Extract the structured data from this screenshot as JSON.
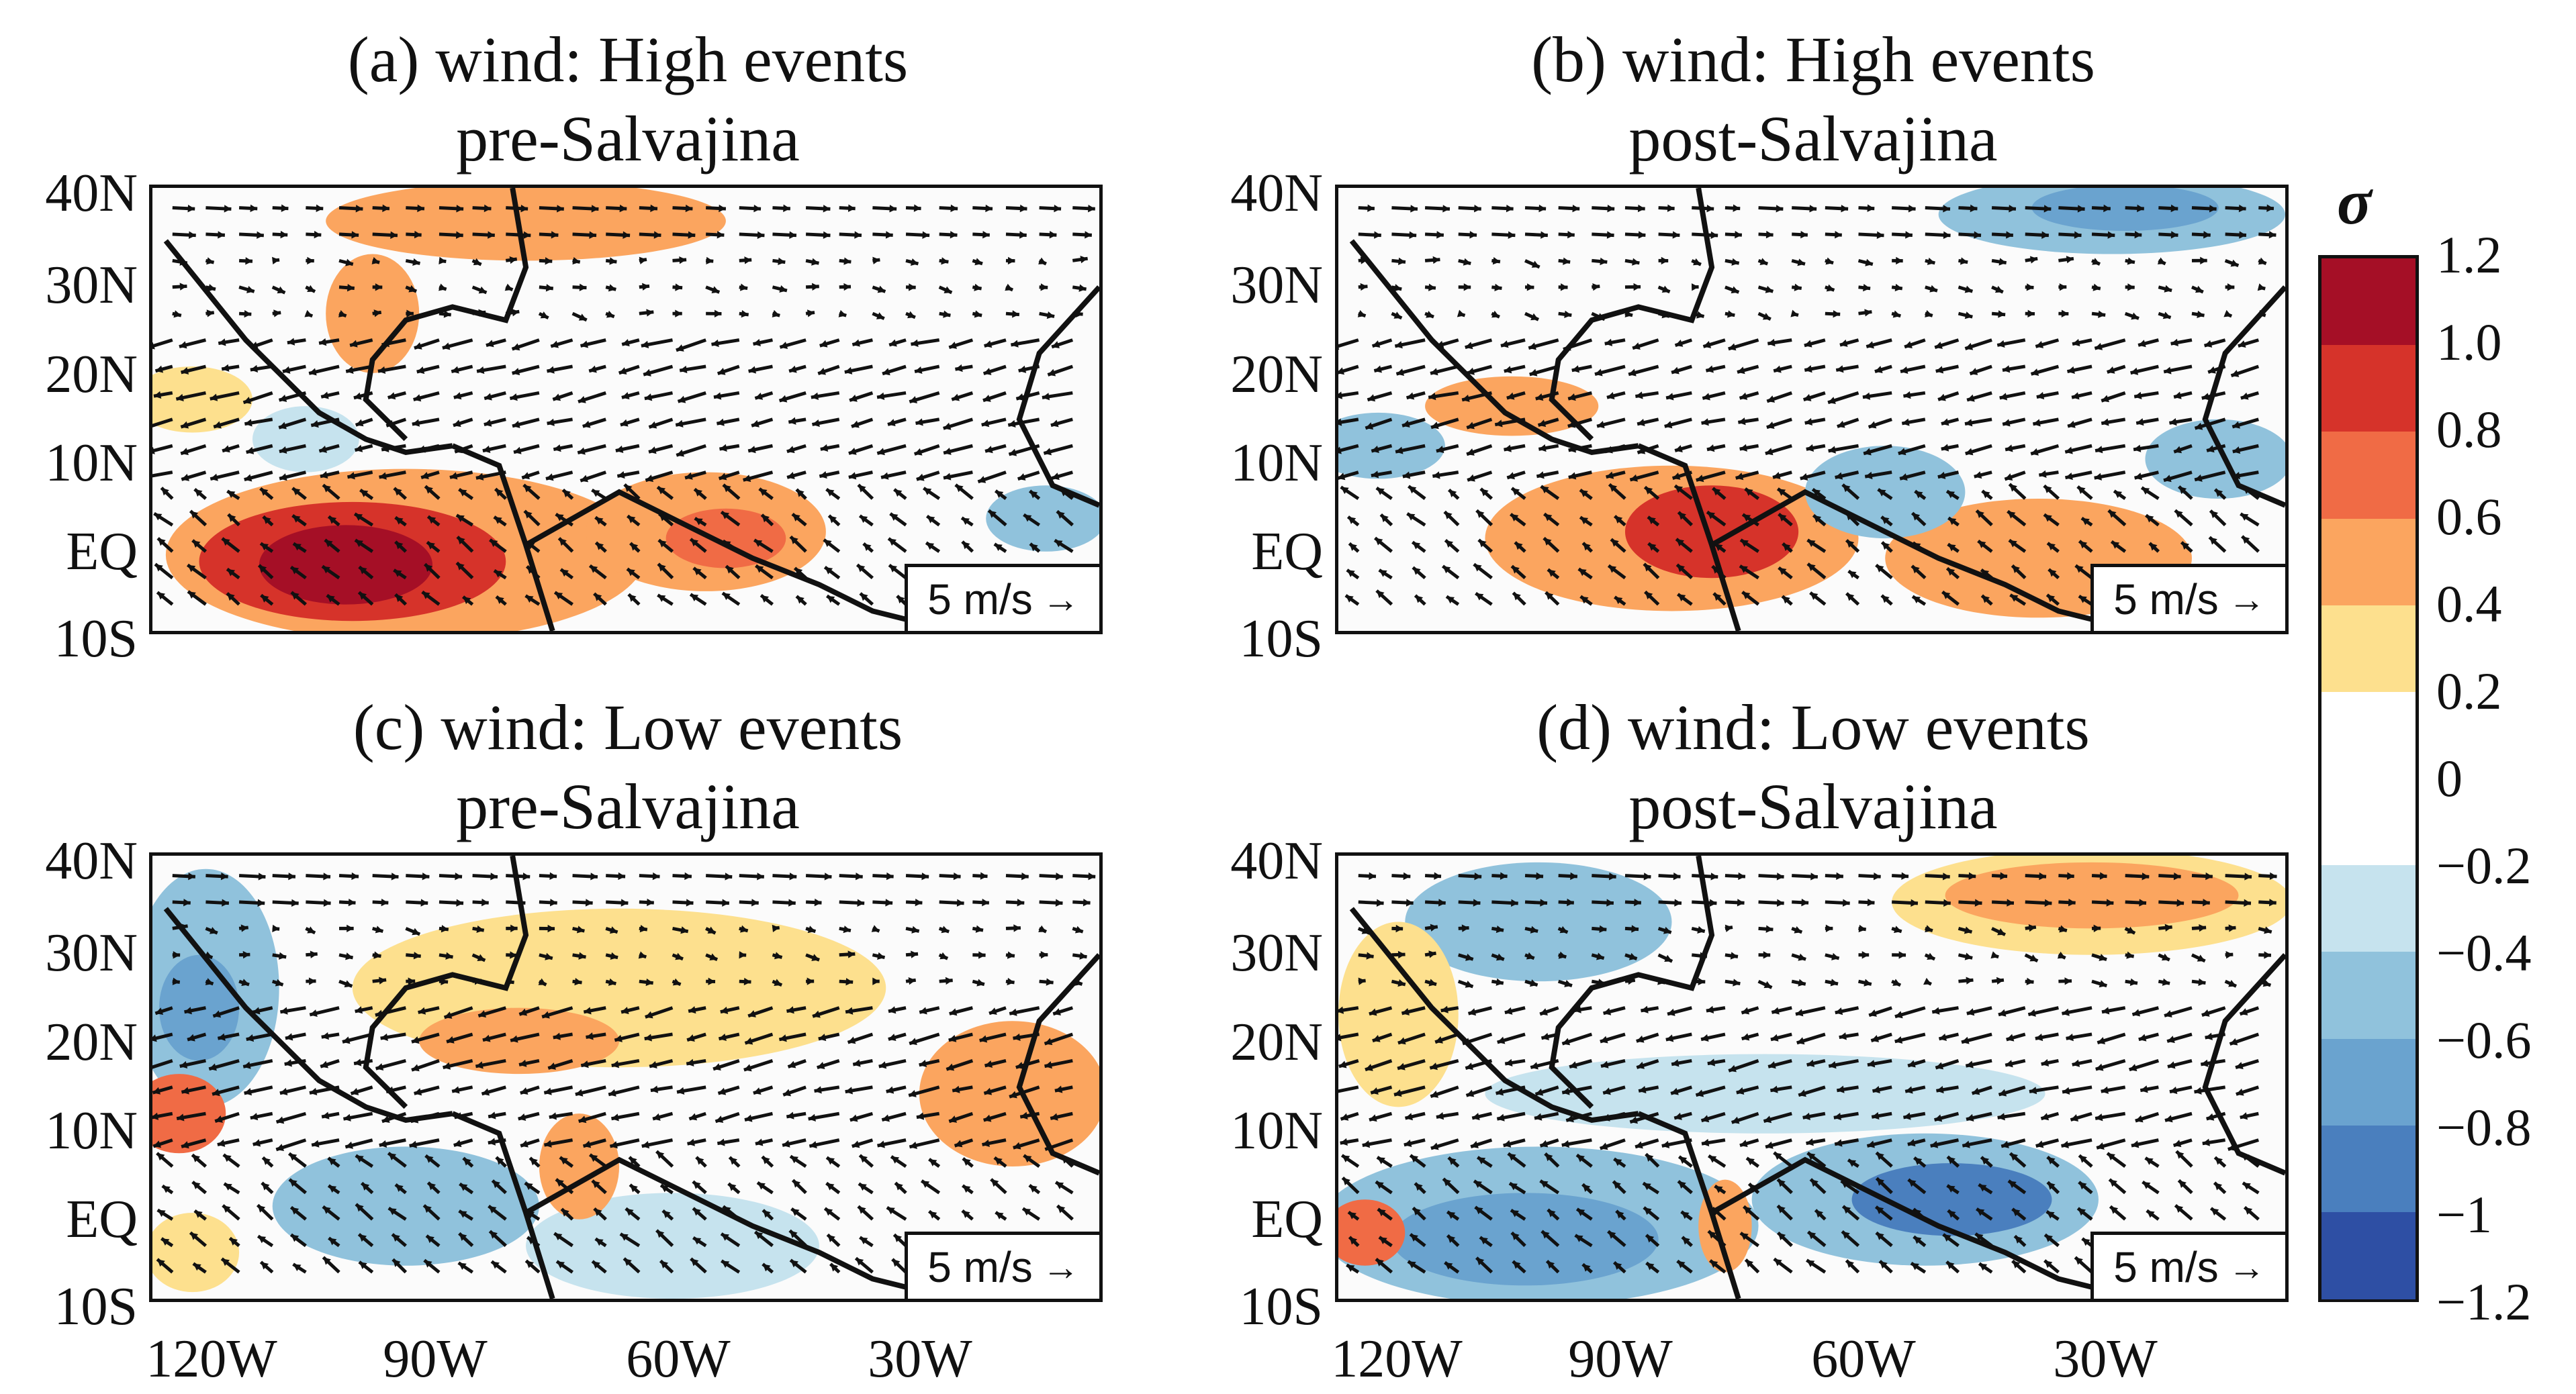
{
  "panels": [
    {
      "id": "a",
      "title_line1": "(a) wind: High events",
      "title_line2": "pre-Salvajina",
      "scale_label": "5 m/s"
    },
    {
      "id": "b",
      "title_line1": "(b) wind: High events",
      "title_line2": "post-Salvajina",
      "scale_label": "5 m/s"
    },
    {
      "id": "c",
      "title_line1": "(c) wind: Low events",
      "title_line2": "pre-Salvajina",
      "scale_label": "5 m/s"
    },
    {
      "id": "d",
      "title_line1": "(d) wind: Low events",
      "title_line2": "post-Salvajina",
      "scale_label": "5 m/s"
    }
  ],
  "axes": {
    "y_ticks": [
      "40N",
      "30N",
      "20N",
      "10N",
      "EQ",
      "10S"
    ],
    "x_ticks": [
      "120W",
      "90W",
      "60W",
      "30W"
    ]
  },
  "colorbar": {
    "title": "σ",
    "labels": [
      "1.2",
      "1.0",
      "0.8",
      "0.6",
      "0.4",
      "0.2",
      "0",
      "−0.2",
      "−0.4",
      "−0.6",
      "−0.8",
      "−1",
      "−1.2"
    ],
    "colors": [
      "#a50f26",
      "#d6332a",
      "#f06b45",
      "#fba55f",
      "#fde08e",
      "#ffffff",
      "#ffffff",
      "#c6e3ee",
      "#90c2dc",
      "#6aa3cf",
      "#4a7fbe",
      "#2e4fa4"
    ]
  },
  "palette": {
    "arrow": "#111111",
    "coast": "#111111"
  }
}
